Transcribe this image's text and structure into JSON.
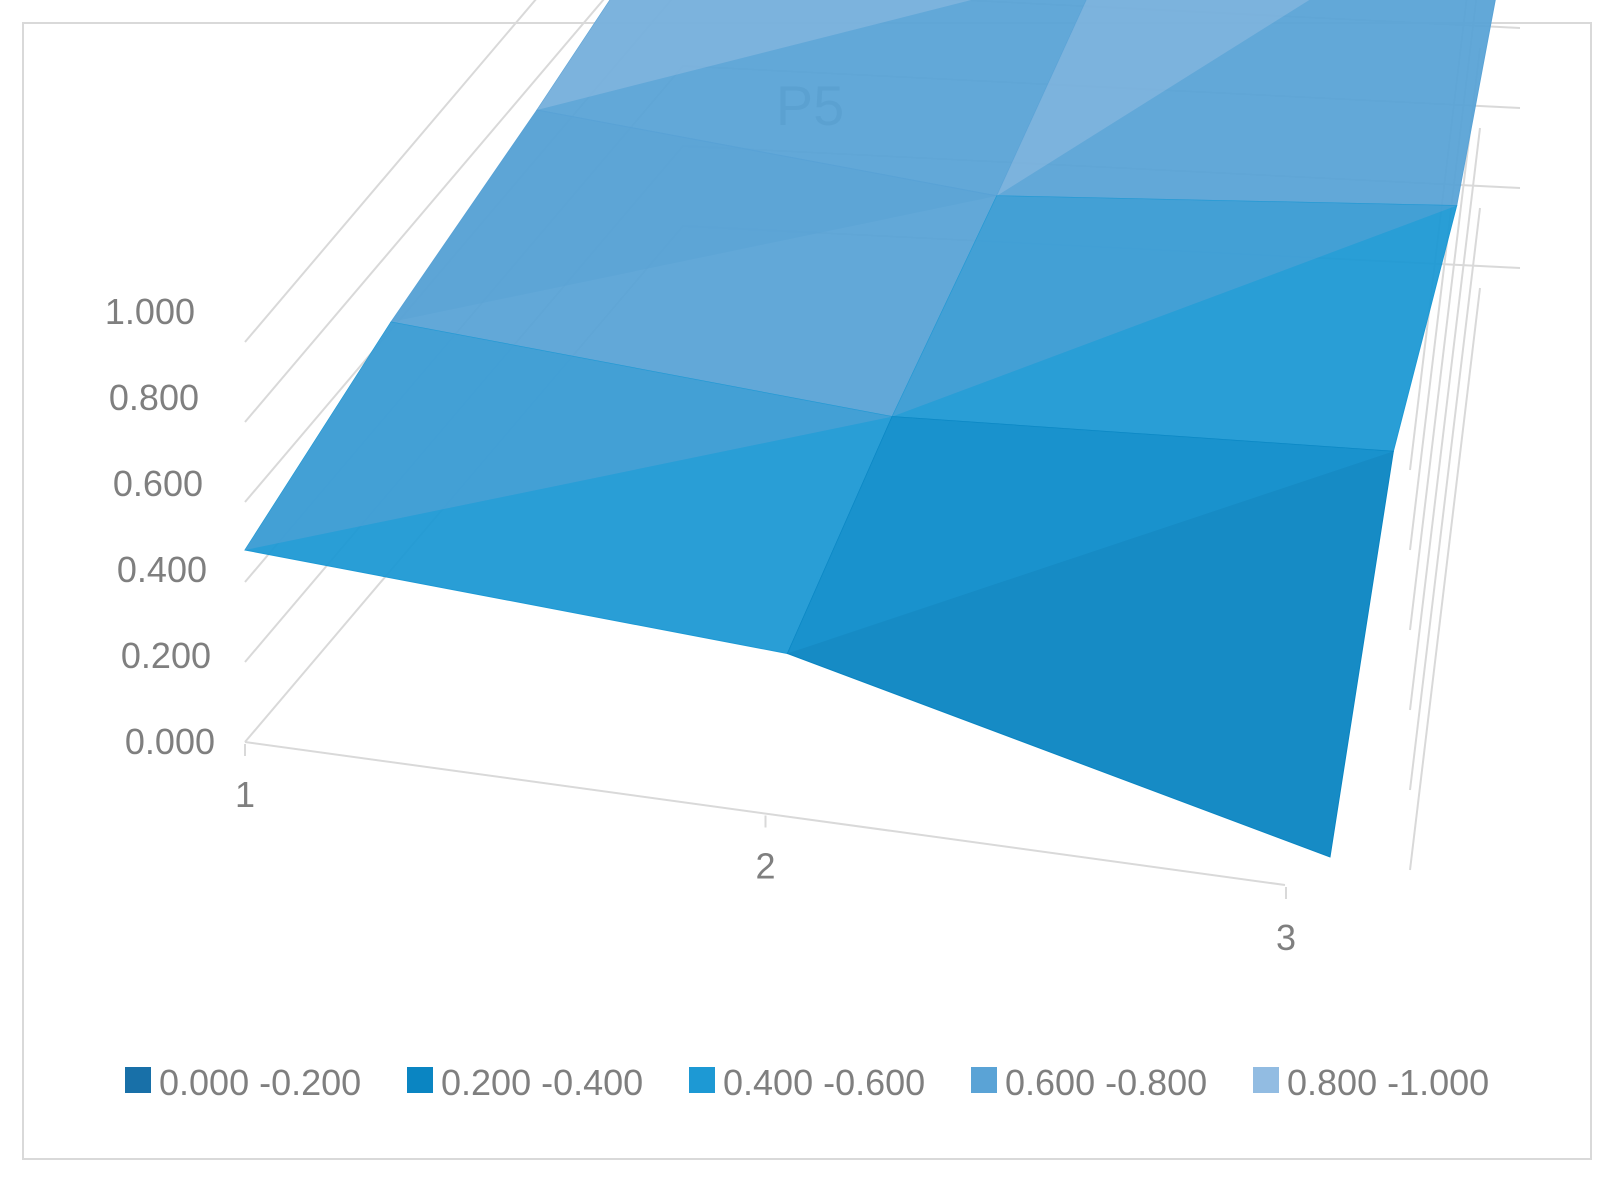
{
  "chart_data": {
    "type": "surface",
    "title": "P5",
    "x_categories": [
      "1",
      "2",
      "3"
    ],
    "z_ticks": [
      "0.000",
      "0.200",
      "0.400",
      "0.600",
      "0.800",
      "1.000"
    ],
    "zlim": [
      0,
      1
    ],
    "series_count": 4,
    "values": [
      [
        0.48,
        0.62,
        0.72,
        0.84
      ],
      [
        0.4,
        0.52,
        0.6,
        0.7
      ],
      [
        0.07,
        0.57,
        0.67,
        1.0
      ]
    ],
    "legend": [
      {
        "label": "0.000 -0.200",
        "color": "#1870a8"
      },
      {
        "label": "0.200 -0.400",
        "color": "#0a85c2"
      },
      {
        "label": "0.400 -0.600",
        "color": "#1d99d4"
      },
      {
        "label": "0.600 -0.800",
        "color": "#5aa3d6"
      },
      {
        "label": "0.800 -1.000",
        "color": "#92bce2"
      }
    ],
    "legend_position": "bottom",
    "gridlines": true
  }
}
